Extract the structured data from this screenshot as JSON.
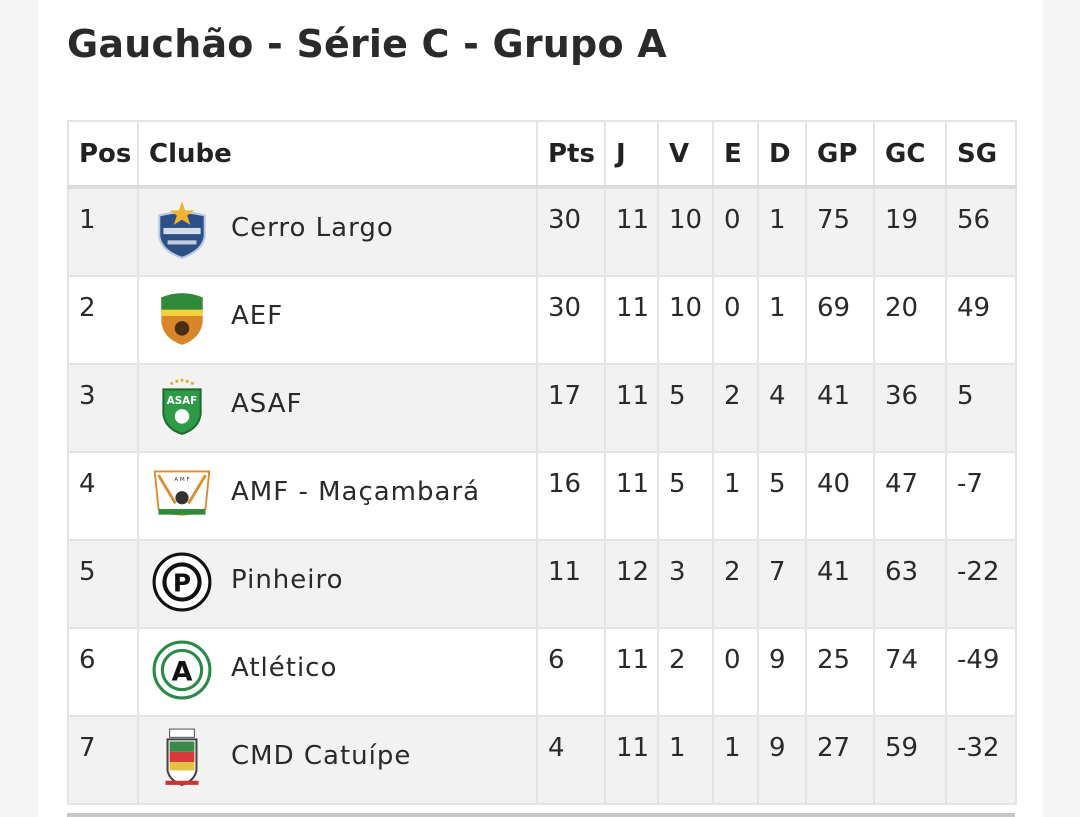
{
  "title": "Gauchão - Série C - Grupo A",
  "headers": [
    "Pos",
    "Clube",
    "Pts",
    "J",
    "V",
    "E",
    "D",
    "GP",
    "GC",
    "SG"
  ],
  "rows": [
    {
      "pos": "1",
      "club": "Cerro Largo",
      "logo": "cerro-largo-crest",
      "pts": "30",
      "j": "11",
      "v": "10",
      "e": "0",
      "d": "1",
      "gp": "75",
      "gc": "19",
      "sg": "56"
    },
    {
      "pos": "2",
      "club": "AEF",
      "logo": "aef-crest",
      "pts": "30",
      "j": "11",
      "v": "10",
      "e": "0",
      "d": "1",
      "gp": "69",
      "gc": "20",
      "sg": "49"
    },
    {
      "pos": "3",
      "club": "ASAF",
      "logo": "asaf-crest",
      "pts": "17",
      "j": "11",
      "v": "5",
      "e": "2",
      "d": "4",
      "gp": "41",
      "gc": "36",
      "sg": "5"
    },
    {
      "pos": "4",
      "club": "AMF - Maçambará",
      "logo": "amf-crest",
      "pts": "16",
      "j": "11",
      "v": "5",
      "e": "1",
      "d": "5",
      "gp": "40",
      "gc": "47",
      "sg": "-7"
    },
    {
      "pos": "5",
      "club": "Pinheiro",
      "logo": "pinheiro-crest",
      "pts": "11",
      "j": "12",
      "v": "3",
      "e": "2",
      "d": "7",
      "gp": "41",
      "gc": "63",
      "sg": "-22"
    },
    {
      "pos": "6",
      "club": "Atlético",
      "logo": "atletico-crest",
      "pts": "6",
      "j": "11",
      "v": "2",
      "e": "0",
      "d": "9",
      "gp": "25",
      "gc": "74",
      "sg": "-49"
    },
    {
      "pos": "7",
      "club": "CMD Catuípe",
      "logo": "cmd-catuipe-crest",
      "pts": "4",
      "j": "11",
      "v": "1",
      "e": "1",
      "d": "9",
      "gp": "27",
      "gc": "59",
      "sg": "-32"
    }
  ]
}
